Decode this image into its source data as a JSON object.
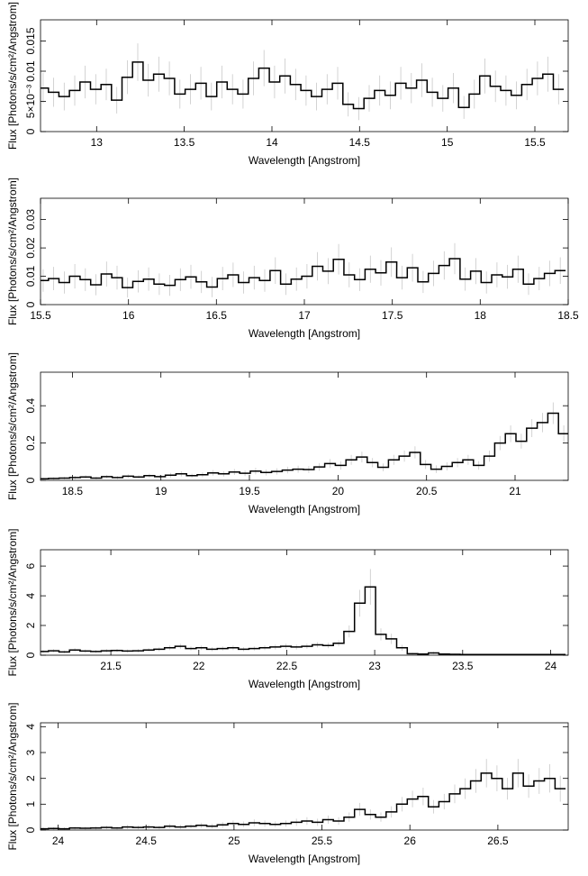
{
  "chart_data": [
    {
      "type": "line",
      "xlabel": "Wavelength [Angstrom]",
      "ylabel": "Flux [Photons/s/cm²/Angstrom]",
      "xlim": [
        12.68,
        15.69
      ],
      "ylim": [
        0,
        0.0185
      ],
      "x_ticks": [
        13,
        13.5,
        14,
        14.5,
        15,
        15.5
      ],
      "x_tick_labels": [
        "13",
        "13.5",
        "14",
        "14.5",
        "15",
        "15.5"
      ],
      "y_ticks": [
        0,
        0.005,
        0.01,
        0.015
      ],
      "y_tick_labels": [
        "0",
        "5×10⁻³",
        "0.01",
        "0.015"
      ],
      "series": [
        {
          "bin_width": 0.03,
          "x": [
            12.695,
            12.755,
            12.815,
            12.875,
            12.935,
            12.995,
            13.055,
            13.115,
            13.175,
            13.235,
            13.295,
            13.355,
            13.415,
            13.475,
            13.535,
            13.595,
            13.655,
            13.715,
            13.775,
            13.835,
            13.895,
            13.955,
            14.015,
            14.075,
            14.135,
            14.195,
            14.255,
            14.315,
            14.375,
            14.435,
            14.495,
            14.555,
            14.615,
            14.675,
            14.735,
            14.795,
            14.855,
            14.915,
            14.975,
            15.035,
            15.095,
            15.155,
            15.215,
            15.275,
            15.335,
            15.395,
            15.455,
            15.515,
            15.575,
            15.635
          ],
          "y": [
            0.0072,
            0.0065,
            0.0058,
            0.0068,
            0.0082,
            0.007,
            0.0078,
            0.0052,
            0.009,
            0.0115,
            0.0085,
            0.0095,
            0.0088,
            0.0062,
            0.007,
            0.008,
            0.0058,
            0.0082,
            0.007,
            0.0062,
            0.0088,
            0.0105,
            0.0082,
            0.0092,
            0.0078,
            0.0068,
            0.0058,
            0.007,
            0.008,
            0.0045,
            0.0038,
            0.0055,
            0.0068,
            0.006,
            0.008,
            0.0072,
            0.0085,
            0.0065,
            0.0055,
            0.0072,
            0.004,
            0.0062,
            0.0092,
            0.0075,
            0.0068,
            0.006,
            0.0078,
            0.0088,
            0.0095,
            0.007
          ],
          "err": [
            0.0025,
            0.0024,
            0.0023,
            0.0025,
            0.0027,
            0.0025,
            0.0026,
            0.0022,
            0.0028,
            0.0031,
            0.0027,
            0.0029,
            0.0028,
            0.0024,
            0.0025,
            0.0027,
            0.0023,
            0.0027,
            0.0025,
            0.0024,
            0.0028,
            0.003,
            0.0027,
            0.0029,
            0.0026,
            0.0025,
            0.0023,
            0.0025,
            0.0027,
            0.002,
            0.0019,
            0.0022,
            0.0025,
            0.0023,
            0.0027,
            0.0025,
            0.0028,
            0.0024,
            0.0022,
            0.0025,
            0.0019,
            0.0024,
            0.0029,
            0.0026,
            0.0025,
            0.0023,
            0.0026,
            0.0028,
            0.0029,
            0.0025
          ]
        }
      ]
    },
    {
      "type": "line",
      "xlabel": "Wavelength [Angstrom]",
      "ylabel": "Flux [Photons/s/cm²/Angstrom]",
      "xlim": [
        15.5,
        18.5
      ],
      "ylim": [
        0,
        0.0375
      ],
      "x_ticks": [
        15.5,
        16,
        16.5,
        17,
        17.5,
        18,
        18.5
      ],
      "x_tick_labels": [
        "15.5",
        "16",
        "16.5",
        "17",
        "17.5",
        "18",
        "18.5"
      ],
      "y_ticks": [
        0,
        0.01,
        0.02,
        0.03
      ],
      "y_tick_labels": [
        "0",
        "0.01",
        "0.02",
        "0.03"
      ],
      "series": [
        {
          "bin_width": 0.03,
          "x": [
            15.515,
            15.575,
            15.635,
            15.695,
            15.755,
            15.815,
            15.875,
            15.935,
            15.995,
            16.055,
            16.115,
            16.175,
            16.235,
            16.295,
            16.355,
            16.415,
            16.475,
            16.535,
            16.595,
            16.655,
            16.715,
            16.775,
            16.835,
            16.895,
            16.955,
            17.015,
            17.075,
            17.135,
            17.195,
            17.255,
            17.315,
            17.375,
            17.435,
            17.495,
            17.555,
            17.615,
            17.675,
            17.735,
            17.795,
            17.855,
            17.915,
            17.975,
            18.035,
            18.095,
            18.155,
            18.215,
            18.275,
            18.335,
            18.395,
            18.455
          ],
          "y": [
            0.0085,
            0.0092,
            0.0078,
            0.01,
            0.0088,
            0.007,
            0.0108,
            0.0095,
            0.006,
            0.0082,
            0.009,
            0.0072,
            0.0068,
            0.0088,
            0.0098,
            0.008,
            0.0062,
            0.0092,
            0.0105,
            0.0078,
            0.0095,
            0.0085,
            0.012,
            0.0072,
            0.009,
            0.01,
            0.0135,
            0.0118,
            0.016,
            0.0105,
            0.0088,
            0.0125,
            0.0112,
            0.015,
            0.0095,
            0.013,
            0.008,
            0.011,
            0.0138,
            0.0162,
            0.009,
            0.0118,
            0.0078,
            0.0105,
            0.0098,
            0.0125,
            0.0072,
            0.0092,
            0.011,
            0.012
          ],
          "err": [
            0.004,
            0.0041,
            0.0039,
            0.0043,
            0.004,
            0.0037,
            0.0044,
            0.0042,
            0.0035,
            0.0039,
            0.0041,
            0.0038,
            0.0037,
            0.004,
            0.0042,
            0.0039,
            0.0036,
            0.0041,
            0.0043,
            0.0039,
            0.0042,
            0.004,
            0.0047,
            0.0038,
            0.0041,
            0.0043,
            0.005,
            0.0046,
            0.0054,
            0.0044,
            0.004,
            0.0048,
            0.0045,
            0.0052,
            0.0042,
            0.0049,
            0.0039,
            0.0045,
            0.005,
            0.0055,
            0.0041,
            0.0046,
            0.0039,
            0.0044,
            0.0042,
            0.0048,
            0.0038,
            0.0041,
            0.0045,
            0.0047
          ]
        }
      ]
    },
    {
      "type": "line",
      "xlabel": "Wavelength [Angstrom]",
      "ylabel": "Flux [Photons/s/cm²/Angstrom]",
      "xlim": [
        18.32,
        21.3
      ],
      "ylim": [
        0,
        0.58
      ],
      "x_ticks": [
        18.5,
        19,
        19.5,
        20,
        20.5,
        21
      ],
      "x_tick_labels": [
        "18.5",
        "19",
        "19.5",
        "20",
        "20.5",
        "21"
      ],
      "y_ticks": [
        0,
        0.2,
        0.4
      ],
      "y_tick_labels": [
        "0",
        "0.2",
        "0.4"
      ],
      "series": [
        {
          "bin_width": 0.03,
          "x": [
            18.335,
            18.395,
            18.455,
            18.515,
            18.575,
            18.635,
            18.695,
            18.755,
            18.815,
            18.875,
            18.935,
            18.995,
            19.055,
            19.115,
            19.175,
            19.235,
            19.295,
            19.355,
            19.415,
            19.475,
            19.535,
            19.595,
            19.655,
            19.715,
            19.775,
            19.835,
            19.895,
            19.955,
            20.015,
            20.075,
            20.135,
            20.195,
            20.255,
            20.315,
            20.375,
            20.435,
            20.495,
            20.555,
            20.615,
            20.675,
            20.735,
            20.795,
            20.855,
            20.915,
            20.975,
            21.035,
            21.095,
            21.155,
            21.215,
            21.275
          ],
          "y": [
            0.008,
            0.01,
            0.012,
            0.015,
            0.018,
            0.012,
            0.02,
            0.015,
            0.022,
            0.018,
            0.025,
            0.02,
            0.028,
            0.035,
            0.025,
            0.03,
            0.04,
            0.035,
            0.045,
            0.038,
            0.05,
            0.042,
            0.048,
            0.055,
            0.06,
            0.058,
            0.072,
            0.09,
            0.08,
            0.11,
            0.125,
            0.095,
            0.07,
            0.11,
            0.13,
            0.15,
            0.085,
            0.06,
            0.075,
            0.095,
            0.11,
            0.08,
            0.13,
            0.2,
            0.25,
            0.21,
            0.28,
            0.31,
            0.36,
            0.25
          ],
          "err": [
            0.006,
            0.007,
            0.007,
            0.008,
            0.009,
            0.007,
            0.01,
            0.008,
            0.01,
            0.009,
            0.011,
            0.01,
            0.012,
            0.014,
            0.011,
            0.013,
            0.015,
            0.014,
            0.016,
            0.015,
            0.017,
            0.016,
            0.017,
            0.018,
            0.019,
            0.018,
            0.021,
            0.024,
            0.022,
            0.027,
            0.029,
            0.025,
            0.021,
            0.027,
            0.03,
            0.032,
            0.024,
            0.02,
            0.022,
            0.025,
            0.027,
            0.023,
            0.03,
            0.038,
            0.045,
            0.04,
            0.048,
            0.052,
            0.058,
            0.045
          ]
        }
      ]
    },
    {
      "type": "line",
      "xlabel": "Wavelength [Angstrom]",
      "ylabel": "Flux [Photons/s/cm²/Angstrom]",
      "xlim": [
        21.1,
        24.1
      ],
      "ylim": [
        0,
        7.1
      ],
      "x_ticks": [
        21.5,
        22,
        22.5,
        23,
        23.5,
        24
      ],
      "x_tick_labels": [
        "21.5",
        "22",
        "22.5",
        "23",
        "23.5",
        "24"
      ],
      "y_ticks": [
        0,
        2,
        4,
        6
      ],
      "y_tick_labels": [
        "0",
        "2",
        "4",
        "6"
      ],
      "series": [
        {
          "bin_width": 0.03,
          "x": [
            21.115,
            21.175,
            21.235,
            21.295,
            21.355,
            21.415,
            21.475,
            21.535,
            21.595,
            21.655,
            21.715,
            21.775,
            21.835,
            21.895,
            21.955,
            22.015,
            22.075,
            22.135,
            22.195,
            22.255,
            22.315,
            22.375,
            22.435,
            22.495,
            22.555,
            22.615,
            22.675,
            22.735,
            22.795,
            22.855,
            22.915,
            22.975,
            23.035,
            23.095,
            23.155,
            23.215,
            23.275,
            23.335,
            23.395,
            23.455,
            23.515,
            23.575,
            23.635,
            23.695,
            23.755,
            23.815,
            23.875,
            23.935,
            23.995,
            24.055
          ],
          "y": [
            0.25,
            0.3,
            0.22,
            0.35,
            0.28,
            0.25,
            0.3,
            0.32,
            0.28,
            0.3,
            0.35,
            0.4,
            0.5,
            0.6,
            0.45,
            0.5,
            0.4,
            0.45,
            0.5,
            0.4,
            0.45,
            0.5,
            0.55,
            0.6,
            0.55,
            0.6,
            0.7,
            0.65,
            0.8,
            1.6,
            3.5,
            4.6,
            1.4,
            1.1,
            0.5,
            0.1,
            0.08,
            0.15,
            0.08,
            0.06,
            0.05,
            0.05,
            0.05,
            0.05,
            0.05,
            0.05,
            0.05,
            0.05,
            0.05,
            0.05
          ],
          "err": [
            0.1,
            0.11,
            0.09,
            0.12,
            0.1,
            0.1,
            0.11,
            0.11,
            0.1,
            0.11,
            0.12,
            0.13,
            0.15,
            0.17,
            0.14,
            0.15,
            0.13,
            0.14,
            0.15,
            0.13,
            0.14,
            0.15,
            0.16,
            0.17,
            0.16,
            0.17,
            0.18,
            0.18,
            0.2,
            0.4,
            0.9,
            1.2,
            0.4,
            0.35,
            0.2,
            0.06,
            0.05,
            0.08,
            0.05,
            0.04,
            0.04,
            0.04,
            0.04,
            0.04,
            0.04,
            0.04,
            0.04,
            0.04,
            0.04,
            0.04
          ]
        }
      ]
    },
    {
      "type": "line",
      "xlabel": "Wavelength [Angstrom]",
      "ylabel": "Flux [Photons/s/cm²/Angstrom]",
      "xlim": [
        23.9,
        26.9
      ],
      "ylim": [
        0,
        4.15
      ],
      "x_ticks": [
        24,
        24.5,
        25,
        25.5,
        26,
        26.5
      ],
      "x_tick_labels": [
        "24",
        "24.5",
        "25",
        "25.5",
        "26",
        "26.5"
      ],
      "y_ticks": [
        0,
        1,
        2,
        3,
        4
      ],
      "y_tick_labels": [
        "0",
        "1",
        "2",
        "3",
        "4"
      ],
      "series": [
        {
          "bin_width": 0.03,
          "x": [
            23.915,
            23.975,
            24.035,
            24.095,
            24.155,
            24.215,
            24.275,
            24.335,
            24.395,
            24.455,
            24.515,
            24.575,
            24.635,
            24.695,
            24.755,
            24.815,
            24.875,
            24.935,
            24.995,
            25.055,
            25.115,
            25.175,
            25.235,
            25.295,
            25.355,
            25.415,
            25.475,
            25.535,
            25.595,
            25.655,
            25.715,
            25.775,
            25.835,
            25.895,
            25.955,
            26.015,
            26.075,
            26.135,
            26.195,
            26.255,
            26.315,
            26.375,
            26.435,
            26.495,
            26.555,
            26.615,
            26.675,
            26.735,
            26.795,
            26.855
          ],
          "y": [
            0.05,
            0.06,
            0.05,
            0.08,
            0.07,
            0.08,
            0.1,
            0.08,
            0.12,
            0.1,
            0.12,
            0.1,
            0.15,
            0.12,
            0.15,
            0.18,
            0.15,
            0.2,
            0.25,
            0.22,
            0.28,
            0.25,
            0.22,
            0.25,
            0.3,
            0.35,
            0.3,
            0.4,
            0.35,
            0.5,
            0.8,
            0.6,
            0.5,
            0.7,
            1.0,
            1.2,
            1.3,
            0.9,
            1.1,
            1.4,
            1.6,
            1.9,
            2.2,
            2.0,
            1.6,
            2.2,
            1.7,
            1.9,
            2.0,
            1.6
          ],
          "err": [
            0.05,
            0.05,
            0.05,
            0.06,
            0.06,
            0.06,
            0.07,
            0.06,
            0.08,
            0.07,
            0.08,
            0.07,
            0.09,
            0.08,
            0.09,
            0.1,
            0.09,
            0.11,
            0.12,
            0.11,
            0.13,
            0.12,
            0.11,
            0.12,
            0.14,
            0.15,
            0.14,
            0.16,
            0.15,
            0.18,
            0.25,
            0.2,
            0.18,
            0.22,
            0.28,
            0.32,
            0.34,
            0.26,
            0.3,
            0.36,
            0.4,
            0.46,
            0.55,
            0.5,
            0.42,
            0.55,
            0.45,
            0.5,
            0.55,
            0.5
          ]
        }
      ]
    }
  ]
}
